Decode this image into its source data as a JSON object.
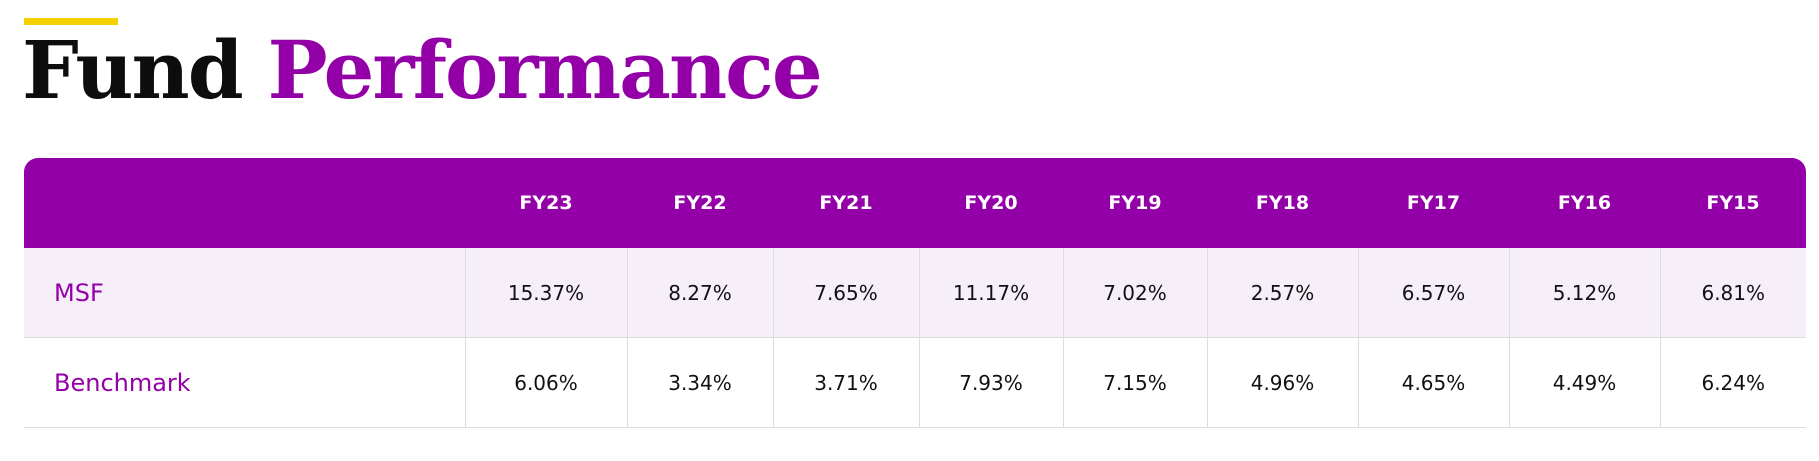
{
  "header": {
    "title_word1": "Fund",
    "title_word2": "Performance"
  },
  "colors": {
    "accent_bar": "#f6d000",
    "brand_purple": "#9400a8",
    "row_tint": "#f6effa"
  },
  "chart_data": {
    "type": "table",
    "title": "Fund Performance",
    "columns": [
      "FY23",
      "FY22",
      "FY21",
      "FY20",
      "FY19",
      "FY18",
      "FY17",
      "FY16",
      "FY15"
    ],
    "rows": [
      {
        "label": "MSF",
        "values": [
          "15.37%",
          "8.27%",
          "7.65%",
          "11.17%",
          "7.02%",
          "2.57%",
          "6.57%",
          "5.12%",
          "6.81%"
        ]
      },
      {
        "label": "Benchmark",
        "values": [
          "6.06%",
          "3.34%",
          "3.71%",
          "7.93%",
          "7.15%",
          "4.96%",
          "4.65%",
          "4.49%",
          "6.24%"
        ]
      }
    ]
  }
}
